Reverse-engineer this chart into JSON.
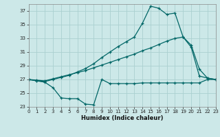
{
  "xlabel": "Humidex (Indice chaleur)",
  "bg_color": "#cce8e8",
  "grid_color": "#aad0d0",
  "line_color": "#006666",
  "xlim": [
    0,
    23
  ],
  "ylim": [
    23,
    38
  ],
  "yticks": [
    23,
    25,
    27,
    29,
    31,
    33,
    35,
    37
  ],
  "xticks": [
    0,
    1,
    2,
    3,
    4,
    5,
    6,
    7,
    8,
    9,
    10,
    11,
    12,
    13,
    14,
    15,
    16,
    17,
    18,
    19,
    20,
    21,
    22,
    23
  ],
  "line1_x": [
    0,
    1,
    2,
    3,
    4,
    5,
    6,
    7,
    8,
    9,
    10,
    11,
    12,
    13,
    14,
    15,
    16,
    17,
    18,
    19,
    20,
    21,
    22,
    23
  ],
  "line1_y": [
    27.0,
    26.8,
    26.7,
    27.0,
    27.3,
    27.6,
    28.1,
    28.6,
    29.3,
    30.2,
    31.0,
    31.8,
    32.5,
    33.2,
    35.2,
    37.7,
    37.4,
    36.5,
    36.7,
    33.2,
    32.0,
    28.5,
    27.2,
    27.0
  ],
  "line2_x": [
    0,
    1,
    2,
    3,
    4,
    5,
    6,
    7,
    8,
    9,
    10,
    11,
    12,
    13,
    14,
    15,
    16,
    17,
    18,
    19,
    20,
    21,
    22,
    23
  ],
  "line2_y": [
    27.0,
    26.9,
    26.8,
    27.1,
    27.4,
    27.7,
    28.0,
    28.3,
    28.7,
    29.1,
    29.5,
    29.9,
    30.3,
    30.7,
    31.2,
    31.6,
    32.1,
    32.6,
    33.0,
    33.2,
    31.7,
    27.5,
    27.2,
    27.0
  ],
  "line3_x": [
    0,
    1,
    2,
    3,
    4,
    5,
    6,
    7,
    8,
    9,
    10,
    11,
    12,
    13,
    14,
    15,
    16,
    17,
    18,
    19,
    20,
    21,
    22,
    23
  ],
  "line3_y": [
    27.0,
    26.8,
    26.6,
    25.8,
    24.3,
    24.2,
    24.2,
    23.4,
    23.3,
    27.0,
    26.4,
    26.4,
    26.4,
    26.4,
    26.5,
    26.5,
    26.5,
    26.5,
    26.5,
    26.5,
    26.5,
    26.5,
    27.0,
    27.0
  ],
  "xlabel_fontsize": 6,
  "tick_fontsize": 5,
  "linewidth": 0.9,
  "markersize": 3
}
